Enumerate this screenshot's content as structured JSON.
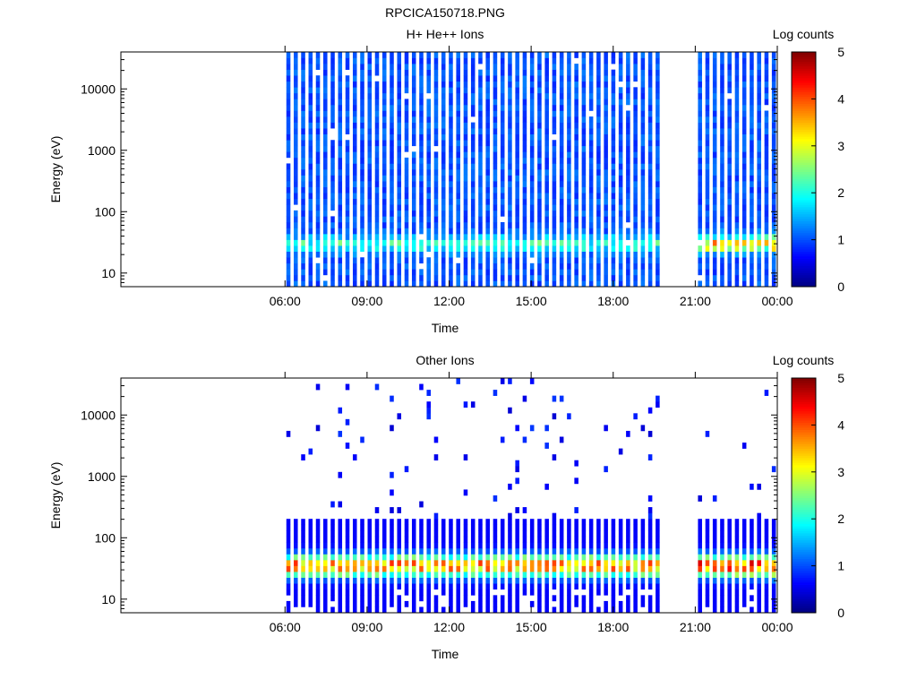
{
  "figure": {
    "title": "RPCICA150718.PNG"
  },
  "colors": {
    "colormap": [
      "#00007f",
      "#0000ff",
      "#0080ff",
      "#00ffff",
      "#80ff80",
      "#ffff00",
      "#ff8000",
      "#ff0000",
      "#7f0000"
    ],
    "background": "#ffffff",
    "axes": "#000000"
  },
  "chart_data": [
    {
      "type": "heatmap",
      "title": "H+ He++ Ions",
      "xlabel": "Time",
      "ylabel": "Energy (eV)",
      "colorbar_label": "Log counts",
      "colorbar_range": [
        0,
        5
      ],
      "colorbar_ticks": [
        "0",
        "1",
        "2",
        "3",
        "4",
        "5"
      ],
      "y_scale": "log",
      "ylim": [
        6,
        40000
      ],
      "yticks": [
        10,
        100,
        1000,
        10000
      ],
      "ytick_labels": [
        "10",
        "100",
        "1000",
        "10000"
      ],
      "xlim_hours": [
        0,
        24
      ],
      "xticks_hours": [
        6,
        9,
        12,
        15,
        18,
        21,
        24
      ],
      "xtick_labels": [
        "06:00",
        "09:00",
        "12:00",
        "15:00",
        "18:00",
        "21:00",
        "00:00"
      ],
      "data_intervals_hours": [
        [
          6.05,
          19.8
        ],
        [
          21.1,
          24.0
        ]
      ],
      "sweep_period_hours": 0.27,
      "background_log_counts": 0.8,
      "peak_energy_ev": 30,
      "peak_log_counts": 2.0,
      "late_peak_log_counts": 3.6
    },
    {
      "type": "heatmap",
      "title": "Other Ions",
      "xlabel": "Time",
      "ylabel": "Energy (eV)",
      "colorbar_label": "Log counts",
      "colorbar_range": [
        0,
        5
      ],
      "colorbar_ticks": [
        "0",
        "1",
        "2",
        "3",
        "4",
        "5"
      ],
      "y_scale": "log",
      "ylim": [
        6,
        40000
      ],
      "yticks": [
        10,
        100,
        1000,
        10000
      ],
      "ytick_labels": [
        "10",
        "100",
        "1000",
        "10000"
      ],
      "xlim_hours": [
        0,
        24
      ],
      "xticks_hours": [
        6,
        9,
        12,
        15,
        18,
        21,
        24
      ],
      "xtick_labels": [
        "06:00",
        "09:00",
        "12:00",
        "15:00",
        "18:00",
        "21:00",
        "00:00"
      ],
      "data_intervals_hours": [
        [
          6.05,
          19.8
        ],
        [
          21.1,
          24.0
        ]
      ],
      "sweep_period_hours": 0.27,
      "background_log_counts": 0.6,
      "peak_energy_ev": 35,
      "peak_log_counts": 3.8,
      "late_peak_log_counts": 4.2
    }
  ]
}
